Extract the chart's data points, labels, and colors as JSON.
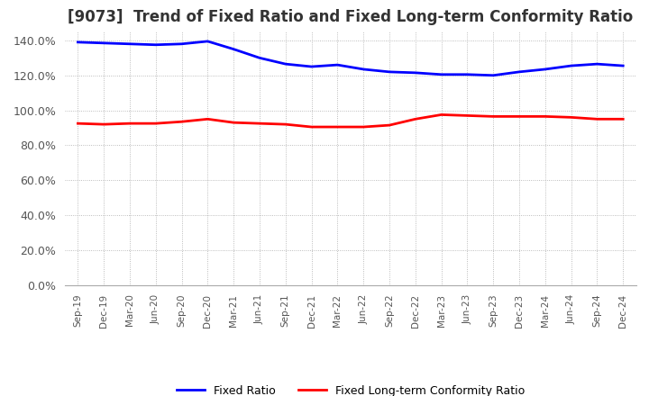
{
  "title": "[9073]  Trend of Fixed Ratio and Fixed Long-term Conformity Ratio",
  "x_labels": [
    "Sep-19",
    "Dec-19",
    "Mar-20",
    "Jun-20",
    "Sep-20",
    "Dec-20",
    "Mar-21",
    "Jun-21",
    "Sep-21",
    "Dec-21",
    "Mar-22",
    "Jun-22",
    "Sep-22",
    "Dec-22",
    "Mar-23",
    "Jun-23",
    "Sep-23",
    "Dec-23",
    "Mar-24",
    "Jun-24",
    "Sep-24",
    "Dec-24"
  ],
  "fixed_ratio": [
    139.0,
    138.5,
    138.0,
    137.5,
    138.0,
    139.5,
    135.0,
    130.0,
    126.5,
    125.0,
    126.0,
    123.5,
    122.0,
    121.5,
    120.5,
    120.5,
    120.0,
    122.0,
    123.5,
    125.5,
    126.5,
    125.5
  ],
  "fixed_lt_ratio": [
    92.5,
    92.0,
    92.5,
    92.5,
    93.5,
    95.0,
    93.0,
    92.5,
    92.0,
    90.5,
    90.5,
    90.5,
    91.5,
    95.0,
    97.5,
    97.0,
    96.5,
    96.5,
    96.5,
    96.0,
    95.0,
    95.0
  ],
  "fixed_ratio_color": "#0000ff",
  "fixed_lt_ratio_color": "#ff0000",
  "ylim": [
    0,
    145
  ],
  "yticks": [
    0,
    20,
    40,
    60,
    80,
    100,
    120,
    140
  ],
  "yticklabels": [
    "0.0%",
    "20.0%",
    "40.0%",
    "60.0%",
    "80.0%",
    "100.0%",
    "120.0%",
    "140.0%"
  ],
  "title_fontsize": 12,
  "grid_color": "#aaaaaa",
  "background_color": "#ffffff",
  "legend_labels": [
    "Fixed Ratio",
    "Fixed Long-term Conformity Ratio"
  ]
}
